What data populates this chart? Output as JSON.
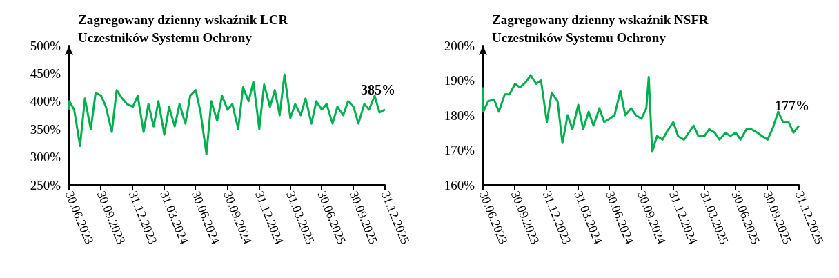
{
  "chart_data": [
    {
      "type": "line",
      "title": "Zagregowany dzienny wskaźnik LCR\nUczestników Systemu Ochrony",
      "marker": "none",
      "grid": false,
      "xlim": [
        "2023-06-30",
        "2025-12-31"
      ],
      "xticks": [
        {
          "value": "2023-06-30",
          "label": "30.06.2023"
        },
        {
          "value": "2023-09-30",
          "label": "30.09.2023"
        },
        {
          "value": "2023-12-31",
          "label": "31.12.2023"
        },
        {
          "value": "2024-03-31",
          "label": "31.03.2024"
        },
        {
          "value": "2024-06-30",
          "label": "30.06.2024"
        },
        {
          "value": "2024-09-30",
          "label": "30.09.2024"
        },
        {
          "value": "2024-12-31",
          "label": "31.12.2024"
        },
        {
          "value": "2025-03-31",
          "label": "31.03.2025"
        },
        {
          "value": "2025-06-30",
          "label": "30.06.2025"
        },
        {
          "value": "2025-09-30",
          "label": "30.09.2025"
        },
        {
          "value": "2025-12-31",
          "label": "31.12.2025"
        }
      ],
      "ylim": [
        250,
        500
      ],
      "yticks": [
        {
          "value": 250,
          "label": "250%"
        },
        {
          "value": 300,
          "label": "300%"
        },
        {
          "value": 350,
          "label": "350%"
        },
        {
          "value": 400,
          "label": "400%"
        },
        {
          "value": 450,
          "label": "450%"
        },
        {
          "value": 500,
          "label": "500%"
        }
      ],
      "annotations": [
        {
          "text": "385%",
          "x": "2025-12-31",
          "y": 385
        }
      ],
      "x": [
        "2023-06-30",
        "2023-07-01",
        "2023-07-15",
        "2023-08-01",
        "2023-08-15",
        "2023-09-01",
        "2023-09-15",
        "2023-10-01",
        "2023-10-15",
        "2023-11-01",
        "2023-11-15",
        "2023-12-01",
        "2023-12-15",
        "2024-01-01",
        "2024-01-15",
        "2024-02-01",
        "2024-02-15",
        "2024-03-01",
        "2024-03-15",
        "2024-04-01",
        "2024-04-15",
        "2024-05-01",
        "2024-05-15",
        "2024-06-01",
        "2024-06-15",
        "2024-07-01",
        "2024-07-15",
        "2024-08-01",
        "2024-08-15",
        "2024-09-01",
        "2024-09-15",
        "2024-10-01",
        "2024-10-15",
        "2024-11-01",
        "2024-11-15",
        "2024-12-01",
        "2024-12-15",
        "2025-01-01",
        "2025-01-15",
        "2025-02-01",
        "2025-02-15",
        "2025-03-01",
        "2025-03-15",
        "2025-04-01",
        "2025-04-15",
        "2025-05-01",
        "2025-05-15",
        "2025-06-01",
        "2025-06-15",
        "2025-07-01",
        "2025-07-15",
        "2025-08-01",
        "2025-08-15",
        "2025-09-01",
        "2025-09-15",
        "2025-10-01",
        "2025-10-15",
        "2025-11-01",
        "2025-11-15",
        "2025-12-01",
        "2025-12-15",
        "2025-12-31"
      ],
      "series": [
        {
          "color": "#00b050",
          "values": [
            385,
            400,
            385,
            320,
            405,
            350,
            415,
            410,
            390,
            345,
            420,
            405,
            395,
            390,
            410,
            345,
            395,
            355,
            400,
            340,
            390,
            355,
            395,
            360,
            410,
            420,
            380,
            305,
            400,
            365,
            410,
            385,
            395,
            350,
            425,
            400,
            435,
            350,
            430,
            390,
            420,
            375,
            448,
            370,
            395,
            375,
            405,
            360,
            400,
            385,
            395,
            360,
            390,
            375,
            400,
            390,
            360,
            395,
            385,
            410,
            380,
            385
          ]
        }
      ]
    },
    {
      "type": "line",
      "title": "Zagregowany dzienny wskaźnik NSFR\nUczestników Systemu Ochrony",
      "marker": "none",
      "grid": false,
      "xlim": [
        "2023-06-30",
        "2025-12-31"
      ],
      "xticks": [
        {
          "value": "2023-06-30",
          "label": "30.06.2023"
        },
        {
          "value": "2023-09-30",
          "label": "30.09.2023"
        },
        {
          "value": "2023-12-31",
          "label": "31.12.2023"
        },
        {
          "value": "2024-03-31",
          "label": "31.03.2024"
        },
        {
          "value": "2024-06-30",
          "label": "30.06.2024"
        },
        {
          "value": "2024-09-30",
          "label": "30.09.2024"
        },
        {
          "value": "2024-12-31",
          "label": "31.12.2024"
        },
        {
          "value": "2025-03-31",
          "label": "31.03.2025"
        },
        {
          "value": "2025-06-30",
          "label": "30.06.2025"
        },
        {
          "value": "2025-09-30",
          "label": "30.09.2025"
        },
        {
          "value": "2025-12-31",
          "label": "31.12.2025"
        }
      ],
      "ylim": [
        160,
        200
      ],
      "yticks": [
        {
          "value": 160,
          "label": "160%"
        },
        {
          "value": 170,
          "label": "170%"
        },
        {
          "value": 180,
          "label": "180%"
        },
        {
          "value": 190,
          "label": "190%"
        },
        {
          "value": 200,
          "label": "200%"
        }
      ],
      "annotations": [
        {
          "text": "177%",
          "x": "2025-12-31",
          "y": 177
        }
      ],
      "x": [
        "2023-06-30",
        "2023-07-01",
        "2023-07-15",
        "2023-08-01",
        "2023-08-15",
        "2023-09-01",
        "2023-09-15",
        "2023-10-01",
        "2023-10-15",
        "2023-11-01",
        "2023-11-15",
        "2023-12-01",
        "2023-12-15",
        "2024-01-01",
        "2024-01-15",
        "2024-02-01",
        "2024-02-15",
        "2024-03-01",
        "2024-03-15",
        "2024-04-01",
        "2024-04-15",
        "2024-05-01",
        "2024-05-15",
        "2024-06-01",
        "2024-06-15",
        "2024-07-01",
        "2024-07-15",
        "2024-08-01",
        "2024-08-15",
        "2024-09-01",
        "2024-09-15",
        "2024-10-01",
        "2024-10-15",
        "2024-10-22",
        "2024-11-01",
        "2024-11-15",
        "2024-12-01",
        "2024-12-15",
        "2025-01-01",
        "2025-01-15",
        "2025-02-01",
        "2025-02-15",
        "2025-03-01",
        "2025-03-15",
        "2025-04-01",
        "2025-04-15",
        "2025-05-01",
        "2025-05-15",
        "2025-06-01",
        "2025-06-15",
        "2025-07-01",
        "2025-07-15",
        "2025-08-01",
        "2025-08-15",
        "2025-09-01",
        "2025-09-15",
        "2025-10-01",
        "2025-10-15",
        "2025-11-01",
        "2025-11-15",
        "2025-12-01",
        "2025-12-15",
        "2025-12-31"
      ],
      "series": [
        {
          "color": "#00b050",
          "values": [
            188,
            181,
            184,
            184.5,
            181,
            186,
            186,
            189,
            188,
            189.5,
            191.5,
            189,
            190,
            178,
            186.5,
            184,
            172,
            180,
            176,
            183,
            176,
            181,
            177,
            182,
            178,
            179,
            180,
            187,
            180,
            182,
            180,
            179,
            182,
            191,
            169.5,
            174,
            173,
            175.5,
            178,
            174,
            173,
            175,
            177,
            174,
            174,
            176,
            175,
            173,
            175,
            174,
            175,
            173,
            176,
            176,
            175,
            174,
            173,
            176,
            181,
            178,
            178,
            175,
            177
          ]
        }
      ]
    }
  ]
}
